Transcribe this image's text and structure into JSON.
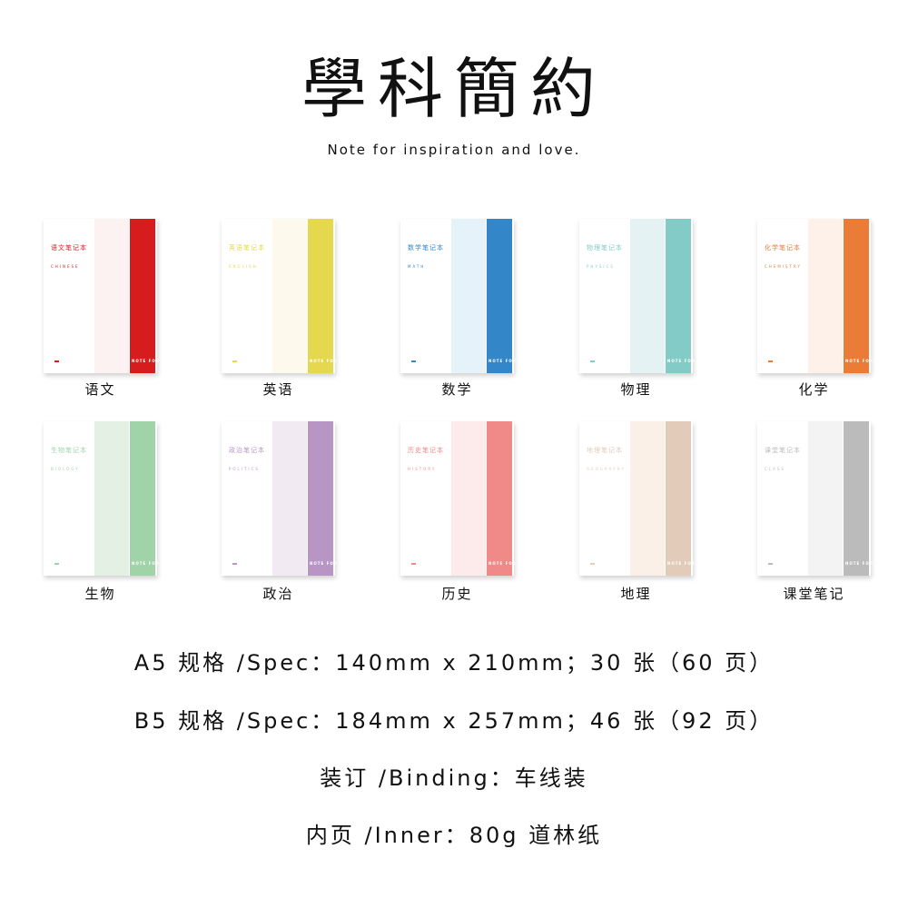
{
  "header": {
    "title": "學科簡約",
    "subtitle": "Note for inspiration and love."
  },
  "notebooks": [
    {
      "label": "语文",
      "cover_title": "语文笔记本",
      "cover_en": "CHINESE",
      "spine": "NOTE FOR",
      "color": "#d61c1c",
      "pale": "#fdf2f2"
    },
    {
      "label": "英语",
      "cover_title": "英语笔记本",
      "cover_en": "ENGLISH",
      "spine": "NOTE FOR",
      "color": "#e5d84e",
      "pale": "#fdf9ec"
    },
    {
      "label": "数学",
      "cover_title": "数学笔记本",
      "cover_en": "MATH",
      "spine": "NOTE FOR",
      "color": "#3386c8",
      "pale": "#e6f2f9"
    },
    {
      "label": "物理",
      "cover_title": "物理笔记本",
      "cover_en": "PHYSICS",
      "spine": "NOTE FOR",
      "color": "#82cbc6",
      "pale": "#e5f2f3"
    },
    {
      "label": "化学",
      "cover_title": "化学笔记本",
      "cover_en": "CHEMISTRY",
      "spine": "NOTE FOR",
      "color": "#eb7c37",
      "pale": "#fdf1ea"
    },
    {
      "label": "生物",
      "cover_title": "生物笔记本",
      "cover_en": "BIOLOGY",
      "spine": "NOTE FOR",
      "color": "#a1d3a8",
      "pale": "#e5f0e5"
    },
    {
      "label": "政治",
      "cover_title": "政治笔记本",
      "cover_en": "POLITICS",
      "spine": "NOTE FOR",
      "color": "#b796c6",
      "pale": "#f1eaf3"
    },
    {
      "label": "历史",
      "cover_title": "历史笔记本",
      "cover_en": "HISTORY",
      "spine": "NOTE FOR",
      "color": "#ef8a88",
      "pale": "#fdebeb"
    },
    {
      "label": "地理",
      "cover_title": "地理笔记本",
      "cover_en": "GEOGRAPHY",
      "spine": "NOTE FOR",
      "color": "#e2cbb8",
      "pale": "#faf0e8"
    },
    {
      "label": "课堂笔记",
      "cover_title": "课堂笔记本",
      "cover_en": "CLASS",
      "spine": "NOTE FOR",
      "color": "#bbbbbb",
      "pale": "#f3f3f3"
    }
  ],
  "specs": [
    "A5 规格 /Spec：140mm x 210mm；30 张（60 页）",
    "B5 规格 /Spec：184mm x 257mm；46 张（92 页）",
    "装订 /Binding：车线装",
    "内页 /Inner：80g 道林纸"
  ]
}
